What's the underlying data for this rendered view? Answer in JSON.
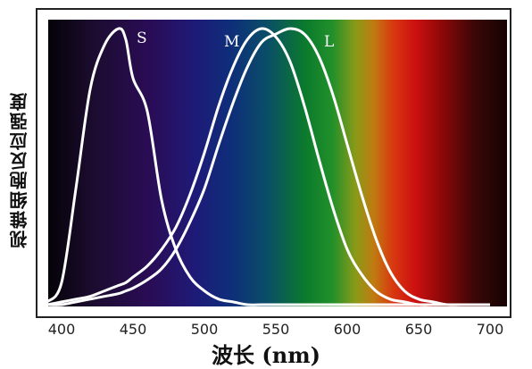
{
  "chart_data": {
    "type": "line",
    "title": "",
    "xlabel": "波长 (nm)",
    "ylabel": "视锥细胞反应强度",
    "xlim": [
      390,
      710
    ],
    "ylim": [
      0,
      1.0
    ],
    "xticks": [
      400,
      450,
      500,
      550,
      600,
      650,
      700
    ],
    "grid": false,
    "background": "visible-spectrum gradient",
    "x": [
      390,
      400,
      410,
      420,
      430,
      440,
      445,
      450,
      460,
      470,
      480,
      490,
      500,
      510,
      520,
      530,
      540,
      550,
      560,
      570,
      580,
      590,
      600,
      610,
      620,
      630,
      640,
      650,
      660,
      670,
      680,
      690,
      700
    ],
    "series": [
      {
        "name": "S",
        "color": "#ffffff",
        "values": [
          0.01,
          0.08,
          0.42,
          0.78,
          0.94,
          1.0,
          0.96,
          0.82,
          0.7,
          0.38,
          0.2,
          0.1,
          0.05,
          0.02,
          0.01,
          0.0,
          0.0,
          0.0,
          0.0,
          0.0,
          0.0,
          0.0,
          0.0,
          0.0,
          0.0,
          0.0,
          0.0,
          0.0,
          0.0,
          0.0,
          0.0,
          0.0,
          0.0
        ]
      },
      {
        "name": "M",
        "color": "#ffffff",
        "values": [
          0.0,
          0.01,
          0.02,
          0.03,
          0.05,
          0.07,
          0.08,
          0.1,
          0.14,
          0.2,
          0.28,
          0.4,
          0.55,
          0.72,
          0.86,
          0.96,
          1.0,
          0.97,
          0.88,
          0.72,
          0.53,
          0.35,
          0.2,
          0.11,
          0.05,
          0.02,
          0.01,
          0.0,
          0.0,
          0.0,
          0.0,
          0.0,
          0.0
        ]
      },
      {
        "name": "L",
        "color": "#ffffff",
        "values": [
          0.0,
          0.0,
          0.01,
          0.02,
          0.03,
          0.04,
          0.05,
          0.06,
          0.09,
          0.13,
          0.2,
          0.3,
          0.42,
          0.58,
          0.73,
          0.86,
          0.95,
          0.98,
          1.0,
          0.98,
          0.9,
          0.76,
          0.58,
          0.4,
          0.24,
          0.12,
          0.05,
          0.02,
          0.01,
          0.0,
          0.0,
          0.0,
          0.0
        ]
      }
    ]
  }
}
